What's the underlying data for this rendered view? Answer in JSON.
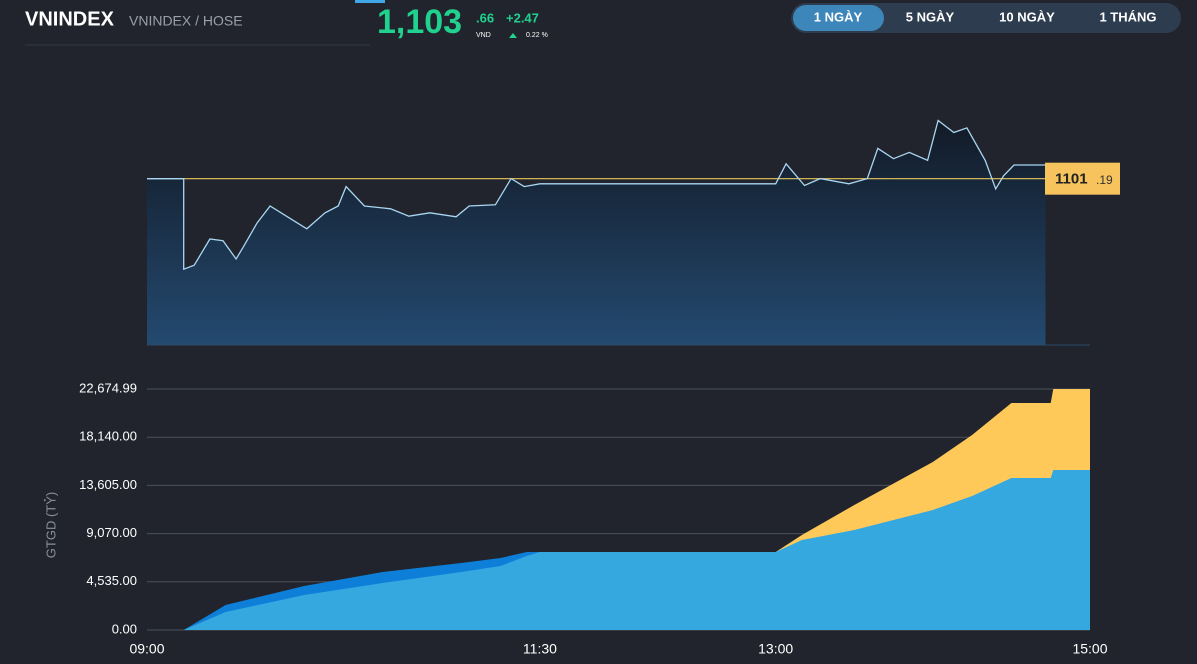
{
  "header": {
    "symbol": "VNINDEX",
    "exchange": "VNINDEX / HOSE",
    "price_int": "1,103",
    "price_dec": ".66",
    "currency": "VND",
    "change": "+2.47",
    "change_pct": "0.22 %"
  },
  "tabs": [
    "1 NGÀY",
    "5 NGÀY",
    "10 NGÀY",
    "1 THÁNG"
  ],
  "chart_data": [
    {
      "type": "line",
      "color": "#a9d6f2",
      "x": [
        "09:00",
        "09:14",
        "09:14",
        "09:18",
        "09:24",
        "09:29",
        "09:34",
        "09:37",
        "09:42",
        "09:47",
        "09:55",
        "10:01",
        "10:08",
        "10:13",
        "10:16",
        "10:23",
        "10:33",
        "10:40",
        "10:48",
        "10:58",
        "11:03",
        "11:13",
        "11:19",
        "11:24",
        "11:30",
        "13:00",
        "13:04",
        "13:11",
        "13:17",
        "13:28",
        "13:35",
        "13:39",
        "13:45",
        "13:51",
        "13:58",
        "14:02",
        "14:08",
        "14:13",
        "14:20",
        "14:24",
        "14:27",
        "14:31",
        "14:43"
      ],
      "values": [
        1101.19,
        1101.19,
        1085.3,
        1086.0,
        1090.6,
        1090.3,
        1087.1,
        1089.4,
        1093.4,
        1096.4,
        1094.1,
        1092.4,
        1095.2,
        1096.4,
        1099.8,
        1096.4,
        1095.9,
        1094.6,
        1095.2,
        1094.5,
        1096.4,
        1096.6,
        1101.2,
        1099.8,
        1100.3,
        1100.3,
        1103.8,
        1100.0,
        1101.2,
        1100.3,
        1101.2,
        1106.5,
        1104.7,
        1105.8,
        1104.4,
        1111.4,
        1109.3,
        1110.1,
        1104.4,
        1099.4,
        1101.7,
        1103.6,
        1103.6
      ],
      "xlim": [
        "09:00",
        "15:00"
      ],
      "ylim": [
        1072,
        1115
      ],
      "reference": {
        "value": 1101.19,
        "label_int": "1101",
        "label_dec": ".19",
        "color": "#e8c65a"
      }
    },
    {
      "type": "area",
      "ylabel": "GTGD (TỶ)",
      "x": [
        "09:00",
        "09:14",
        "09:30",
        "10:00",
        "10:30",
        "11:00",
        "11:15",
        "11:25",
        "11:30",
        "13:00",
        "13:10",
        "13:30",
        "14:00",
        "14:15",
        "14:30",
        "14:45",
        "14:46",
        "15:00"
      ],
      "series": [
        {
          "color": "#ffc95a",
          "values": [
            null,
            null,
            null,
            null,
            null,
            null,
            null,
            null,
            null,
            7340,
            8940,
            11760,
            15810,
            18350,
            21360,
            21360,
            22675,
            22675
          ]
        },
        {
          "color": "#0e7fd8",
          "values": [
            0,
            0,
            2350,
            4140,
            5460,
            6300,
            6770,
            7340,
            7340,
            null,
            null,
            null,
            null,
            null,
            null,
            null,
            null,
            null
          ]
        },
        {
          "color": "#36a8e0",
          "values": [
            0,
            0,
            1690,
            3290,
            4420,
            5460,
            6020,
            6960,
            7340,
            7340,
            8470,
            9410,
            11290,
            12610,
            14300,
            14300,
            15050,
            15050
          ]
        }
      ],
      "xlim": [
        "09:00",
        "15:00"
      ],
      "xticks": [
        "09:00",
        "11:30",
        "13:00",
        "15:00"
      ],
      "ylim": [
        0,
        22674.99
      ],
      "yticks": [
        {
          "value": 0,
          "label": "0.00"
        },
        {
          "value": 4535,
          "label": "4,535.00"
        },
        {
          "value": 9070,
          "label": "9,070.00"
        },
        {
          "value": 13605,
          "label": "13,605.00"
        },
        {
          "value": 18140,
          "label": "18,140.00"
        },
        {
          "value": 22674.99,
          "label": "22,674.99"
        }
      ],
      "grid": true
    }
  ]
}
